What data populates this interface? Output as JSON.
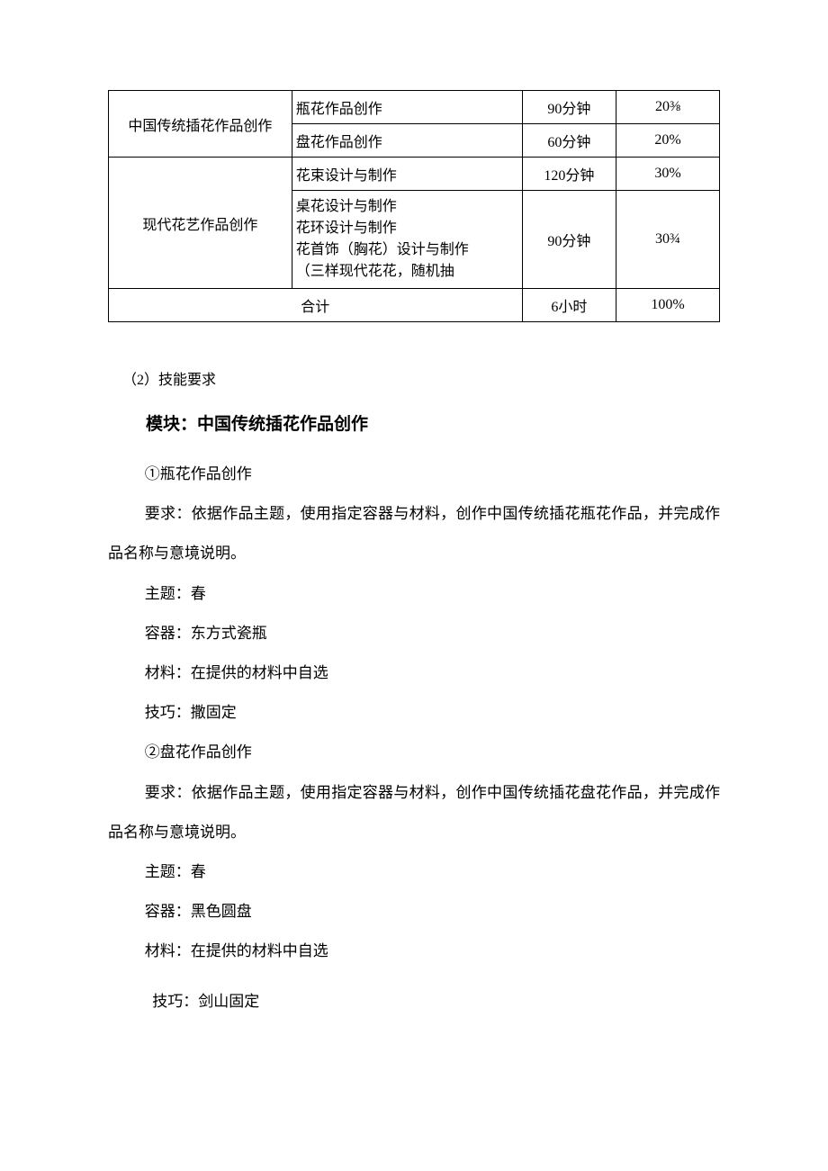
{
  "table": {
    "rows": [
      {
        "category": "中国传统插花作品创作",
        "rowspan": 2,
        "item": "瓶花作品创作",
        "time": "90分钟",
        "percent": "20⅜"
      },
      {
        "item": "盘花作品创作",
        "time": "60分钟",
        "percent": "20%"
      },
      {
        "category": "现代花艺作品创作",
        "rowspan": 2,
        "item": "花束设计与制作",
        "time": "120分钟",
        "percent": "30%"
      },
      {
        "item": "桌花设计与制作\n花环设计与制作\n花首饰（胸花）设计与制作\n（三样现代花花，随机抽",
        "time": "90分钟",
        "percent": "30¾"
      }
    ],
    "total": {
      "label": "合计",
      "time": "6小时",
      "percent": "100%"
    }
  },
  "section_header": "（2）技能要求",
  "module_title": "模块：中国传统插花作品创作",
  "item1": {
    "title": "①瓶花作品创作",
    "req": "要求：依据作品主题，使用指定容器与材料，创作中国传统插花瓶花作品，并完成作品名称与意境说明。",
    "theme": "主题：春",
    "container": "容器：东方式瓷瓶",
    "material": "材料：在提供的材料中自选",
    "technique": "技巧：撒固定"
  },
  "item2": {
    "title": "②盘花作品创作",
    "req": "要求：依据作品主题，使用指定容器与材料，创作中国传统插花盘花作品，并完成作品名称与意境说明。",
    "theme": "主题：春",
    "container": "容器：黑色圆盘",
    "material": "材料：在提供的材料中自选",
    "technique": "技巧：剑山固定"
  }
}
